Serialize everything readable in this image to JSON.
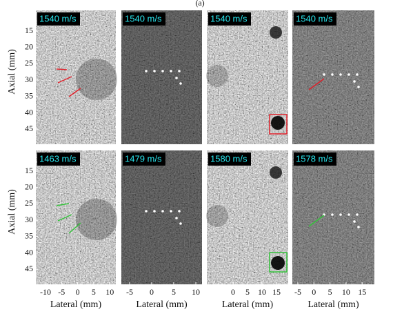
{
  "figure_label": "(a)",
  "y_ticks": [
    15,
    20,
    25,
    30,
    35,
    40,
    45
  ],
  "rows": [
    {
      "y_label": "Axial (mm)",
      "speeds": [
        "1540 m/s",
        "1540 m/s",
        "1540 m/s",
        "1540 m/s"
      ]
    },
    {
      "y_label": "Axial (mm)",
      "speeds": [
        "1463 m/s",
        "1479 m/s",
        "1580 m/s",
        "1578 m/s"
      ]
    }
  ],
  "columns": [
    {
      "x_label": "Lateral (mm)",
      "x_ticks": [
        -10,
        -5,
        0,
        5,
        10
      ]
    },
    {
      "x_label": "Lateral (mm)",
      "x_ticks": [
        -5,
        0,
        5,
        10
      ]
    },
    {
      "x_label": "Lateral (mm)",
      "x_ticks": [
        0,
        5,
        10,
        15
      ]
    },
    {
      "x_label": "Lateral (mm)",
      "x_ticks": [
        -5,
        0,
        5,
        10,
        15
      ]
    }
  ]
}
